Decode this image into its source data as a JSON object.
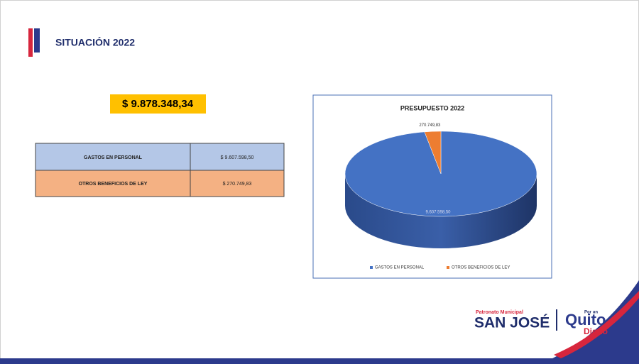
{
  "header": {
    "title": "SITUACIÓN 2022"
  },
  "total": "$ 9.878.348,34",
  "table": {
    "rows": [
      [
        "GASTOS  EN PERSONAL",
        "$ 9.607.598,50"
      ],
      [
        "OTROS BENEFICIOS DE LEY",
        "$ 270.749,83"
      ]
    ]
  },
  "chart_data": {
    "type": "pie",
    "title": "PRESUPUESTO 2022",
    "categories": [
      "GASTOS  EN PERSONAL",
      "OTROS BENEFICIOS DE LEY"
    ],
    "values": [
      9607598.5,
      270749.83
    ],
    "value_labels": [
      "9.607.598,50",
      "270.749,83"
    ],
    "colors": [
      "#4472c4",
      "#ed7d31"
    ],
    "legend": "bottom"
  },
  "logo": {
    "top": "Patronato Municipal",
    "name": "SAN JOSÉ",
    "small": "Por un",
    "city": "Quito",
    "tag": "Digno"
  }
}
